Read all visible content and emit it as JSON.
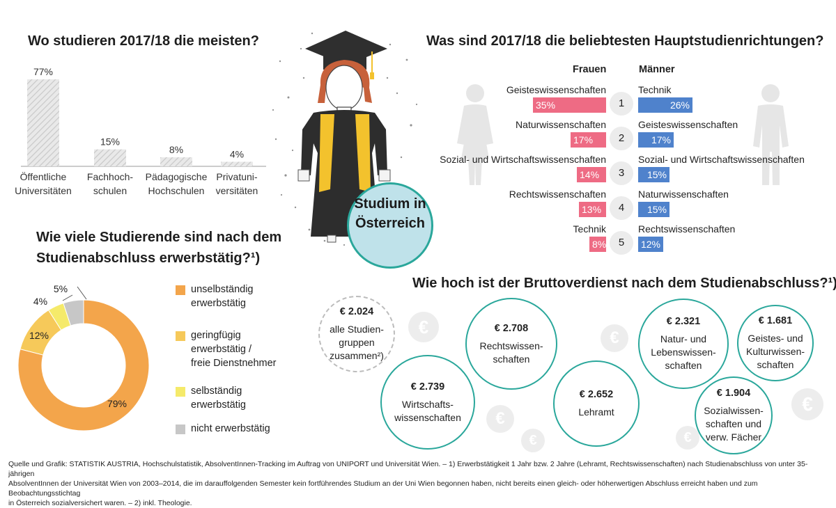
{
  "center_badge": {
    "line1": "Studium in",
    "line2": "Österreich"
  },
  "section_institutions": {
    "title": "Wo studieren 2017/18 die meisten?"
  },
  "section_employment": {
    "title_line1": "Wie viele Studierende sind nach dem",
    "title_line2": "Studienabschluss erwerbstätig?¹)"
  },
  "section_fields": {
    "title": "Was sind 2017/18 die beliebtesten Hauptstudienrichtungen?",
    "women_label": "Frauen",
    "men_label": "Männer"
  },
  "section_income": {
    "title": "Wie hoch ist der Bruttoverdienst nach dem Studienabschluss?¹)"
  },
  "chart_data": [
    {
      "type": "bar",
      "title": "Wo studieren 2017/18 die meisten?",
      "categories": [
        [
          "Öffentliche",
          "Universitäten"
        ],
        [
          "Fachhoch-",
          "schulen"
        ],
        [
          "Pädagogische",
          "Hochschulen"
        ],
        [
          "Privatuni-",
          "versitäten"
        ]
      ],
      "values": [
        77,
        15,
        8,
        4
      ],
      "value_labels": [
        "77%",
        "15%",
        "8%",
        "4%"
      ],
      "ylim": [
        0,
        77
      ],
      "grid": false
    },
    {
      "type": "pie",
      "title": "Wie viele Studierende sind nach dem Studienabschluss erwerbstätig?¹)",
      "labels": [
        [
          "unselbständig",
          "erwerbstätig"
        ],
        [
          "geringfügig",
          "erwerbstätig /",
          "freie Dienstnehmer"
        ],
        [
          "selbständig",
          "erwerbstätig"
        ],
        [
          "nicht erwerbstätig"
        ]
      ],
      "values": [
        79,
        12,
        4,
        5
      ],
      "value_labels": [
        "79%",
        "12%",
        "4%",
        "5%"
      ],
      "colors": [
        "#f3a54b",
        "#f6c95a",
        "#f5ea6a",
        "#c7c7c7"
      ],
      "legend": "right"
    },
    {
      "type": "bar",
      "title": "Was sind 2017/18 die beliebtesten Hauptstudienrichtungen?",
      "ranks": [
        "1",
        "2",
        "3",
        "4",
        "5"
      ],
      "series": [
        {
          "name": "Frauen",
          "color": "#ee6b84",
          "categories": [
            "Geisteswissenschaften",
            "Naturwissenschaften",
            "Sozial- und Wirtschaftswissenschaften",
            "Rechtswissenschaften",
            "Technik"
          ],
          "values": [
            35,
            17,
            14,
            13,
            8
          ],
          "value_labels": [
            "35%",
            "17%",
            "14%",
            "13%",
            "8%"
          ]
        },
        {
          "name": "Männer",
          "color": "#4f82cc",
          "categories": [
            "Technik",
            "Geisteswissenschaften",
            "Sozial- und Wirtschaftswissenschaften",
            "Naturwissenschaften",
            "Rechtswissenschaften"
          ],
          "values": [
            26,
            17,
            15,
            15,
            12
          ],
          "value_labels": [
            "26%",
            "17%",
            "15%",
            "15%",
            "12%"
          ]
        }
      ],
      "xlim": [
        0,
        35
      ]
    },
    {
      "type": "bubble",
      "title": "Wie hoch ist der Bruttoverdienst nach dem Studienabschluss?¹)",
      "items": [
        {
          "amount": "€ 2.024",
          "lines": [
            "alle Studien-",
            "gruppen",
            "zusammen²)"
          ],
          "value": 2024,
          "style": "dashed"
        },
        {
          "amount": "€ 2.708",
          "lines": [
            "Rechtswissen-",
            "schaften"
          ],
          "value": 2708,
          "style": "solid"
        },
        {
          "amount": "€ 2.739",
          "lines": [
            "Wirtschafts-",
            "wissenschaften"
          ],
          "value": 2739,
          "style": "solid"
        },
        {
          "amount": "€ 2.652",
          "lines": [
            "Lehramt"
          ],
          "value": 2652,
          "style": "solid"
        },
        {
          "amount": "€ 2.321",
          "lines": [
            "Natur- und",
            "Lebenswissen-",
            "schaften"
          ],
          "value": 2321,
          "style": "solid"
        },
        {
          "amount": "€ 1.681",
          "lines": [
            "Geistes- und",
            "Kulturwissen-",
            "schaften"
          ],
          "value": 1681,
          "style": "solid"
        },
        {
          "amount": "€ 1.904",
          "lines": [
            "Sozialwissen-",
            "schaften und",
            "verw. Fächer"
          ],
          "value": 1904,
          "style": "solid"
        }
      ]
    }
  ],
  "footer": {
    "line1": "Quelle und Grafik: STATISTIK AUSTRIA, Hochschulstatistik, AbsolventInnen-Tracking im Auftrag von UNIPORT und Universität Wien. – 1) Erwerbstätigkeit 1 Jahr bzw. 2 Jahre (Lehramt, Rechtswissenschaften) nach Studienabschluss von unter 35-jährigen",
    "line2": "AbsolventInnen der Universität Wien von 2003–2014, die im darauffolgenden Semester kein fortführendes Studium an der Uni Wien begonnen haben, nicht bereits einen gleich- oder höherwertigen Abschluss erreicht haben und zum Beobachtungsstichtag",
    "line3": "in Österreich sozialversichert waren. – 2) inkl. Theologie."
  },
  "icons": {
    "graduate": "graduate-figure-icon",
    "woman": "woman-silhouette-icon",
    "man": "man-silhouette-icon",
    "euro": "euro-coin-icon",
    "euro_symbol": "€"
  },
  "colors": {
    "teal": "#2aa79b",
    "badge_fill": "#bfe2ea",
    "gold": "#f3c22d",
    "gray_silhouette": "#e6e6e6"
  }
}
